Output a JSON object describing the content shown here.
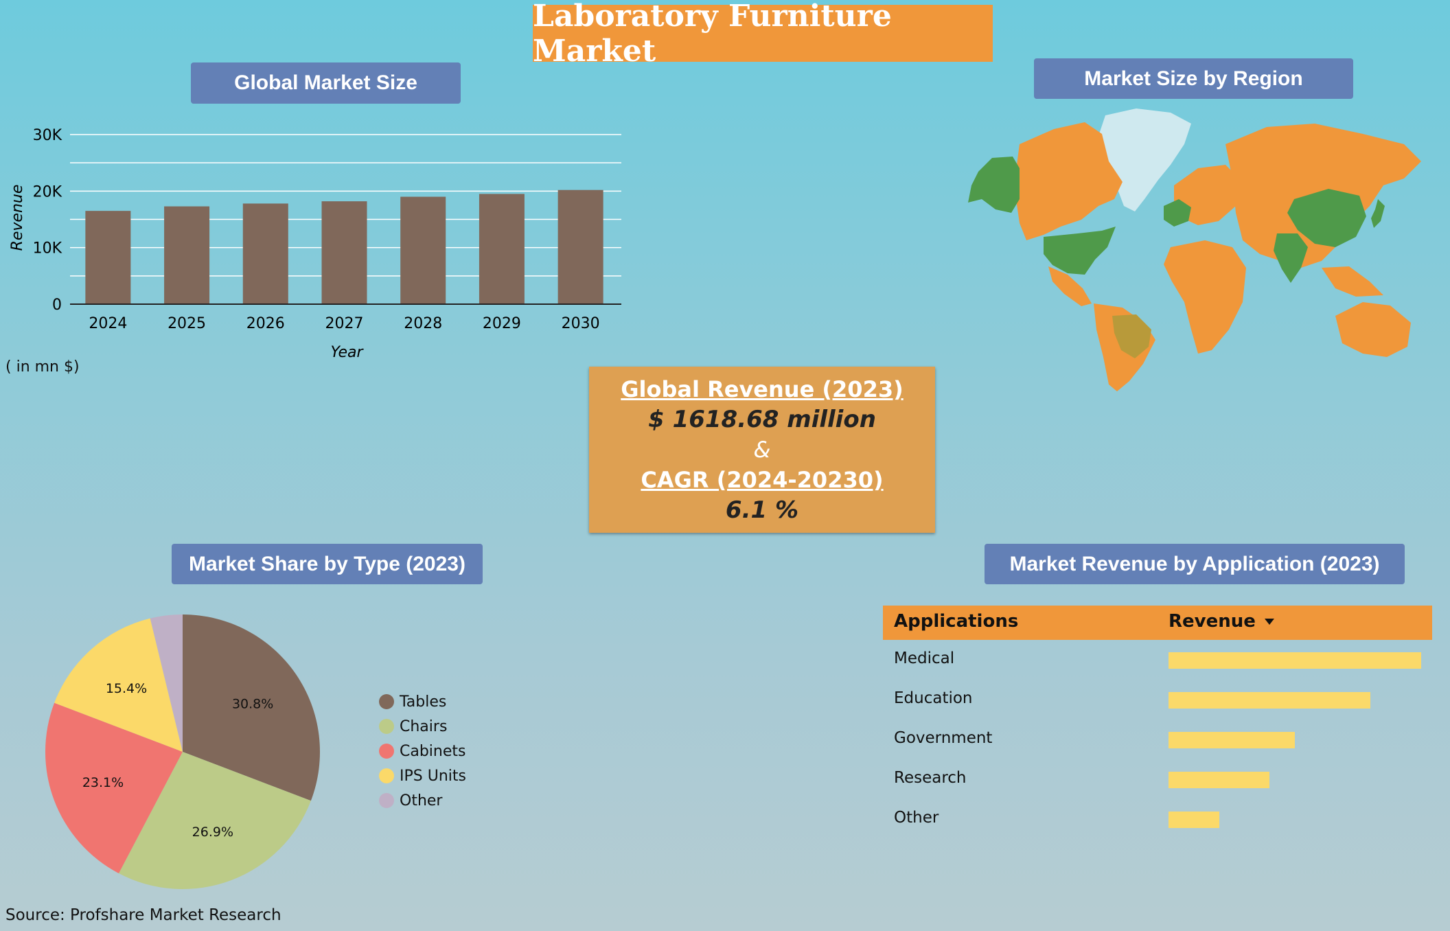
{
  "title": "Laboratory Furniture Market",
  "panels": {
    "global_size": "Global Market Size",
    "region": "Market Size by Region",
    "type_share": "Market Share by Type (2023)",
    "application": "Market Revenue by Application (2023)"
  },
  "unit_note": "( in mn $)",
  "summary": {
    "revenue_label": "Global  Revenue (2023)",
    "revenue_value": "$ 1618.68 million",
    "amp": "&",
    "cagr_label": "CAGR (2024-20230)",
    "cagr_value": "6.1 %"
  },
  "source": "Source: Profshare Market Research",
  "colors": {
    "bar": "#80685a",
    "map_orange": "#f0973a",
    "map_green": "#4f9a4a",
    "map_olive": "#b89a3a",
    "map_ice": "#cfe9ef"
  },
  "chart_data": [
    {
      "type": "bar",
      "title": "Global Market Size",
      "categories": [
        "2024",
        "2025",
        "2026",
        "2027",
        "2028",
        "2029",
        "2030"
      ],
      "values": [
        16500,
        17300,
        17800,
        18200,
        19000,
        19500,
        20200
      ],
      "xlabel": "Year",
      "ylabel": "Revenue",
      "ylim": [
        0,
        30000
      ],
      "yticks": [
        0,
        10000,
        20000,
        30000
      ],
      "ytick_labels": [
        "0",
        "10K",
        "20K",
        "30K"
      ],
      "grid": true
    },
    {
      "type": "pie",
      "title": "Market Share by Type (2023)",
      "labels": [
        "Tables",
        "Chairs",
        "Cabinets",
        "IPS Units",
        "Other"
      ],
      "values": [
        30.8,
        26.9,
        23.1,
        15.4,
        3.8
      ],
      "value_labels": [
        "30.8%",
        "26.9%",
        "23.1%",
        "15.4%",
        ""
      ],
      "colors": [
        "#80685a",
        "#bccb88",
        "#f07570",
        "#fbd969",
        "#bfb0c6"
      ],
      "legend": "right"
    },
    {
      "type": "table",
      "title": "Market Revenue by Application (2023)",
      "columns": [
        "Applications",
        "Revenue"
      ],
      "sort_icon": "triangle-down-icon",
      "rows": [
        "Medical",
        "Education",
        "Government",
        "Research",
        "Other"
      ],
      "relative_values": [
        1.0,
        0.8,
        0.5,
        0.4,
        0.2
      ]
    }
  ]
}
